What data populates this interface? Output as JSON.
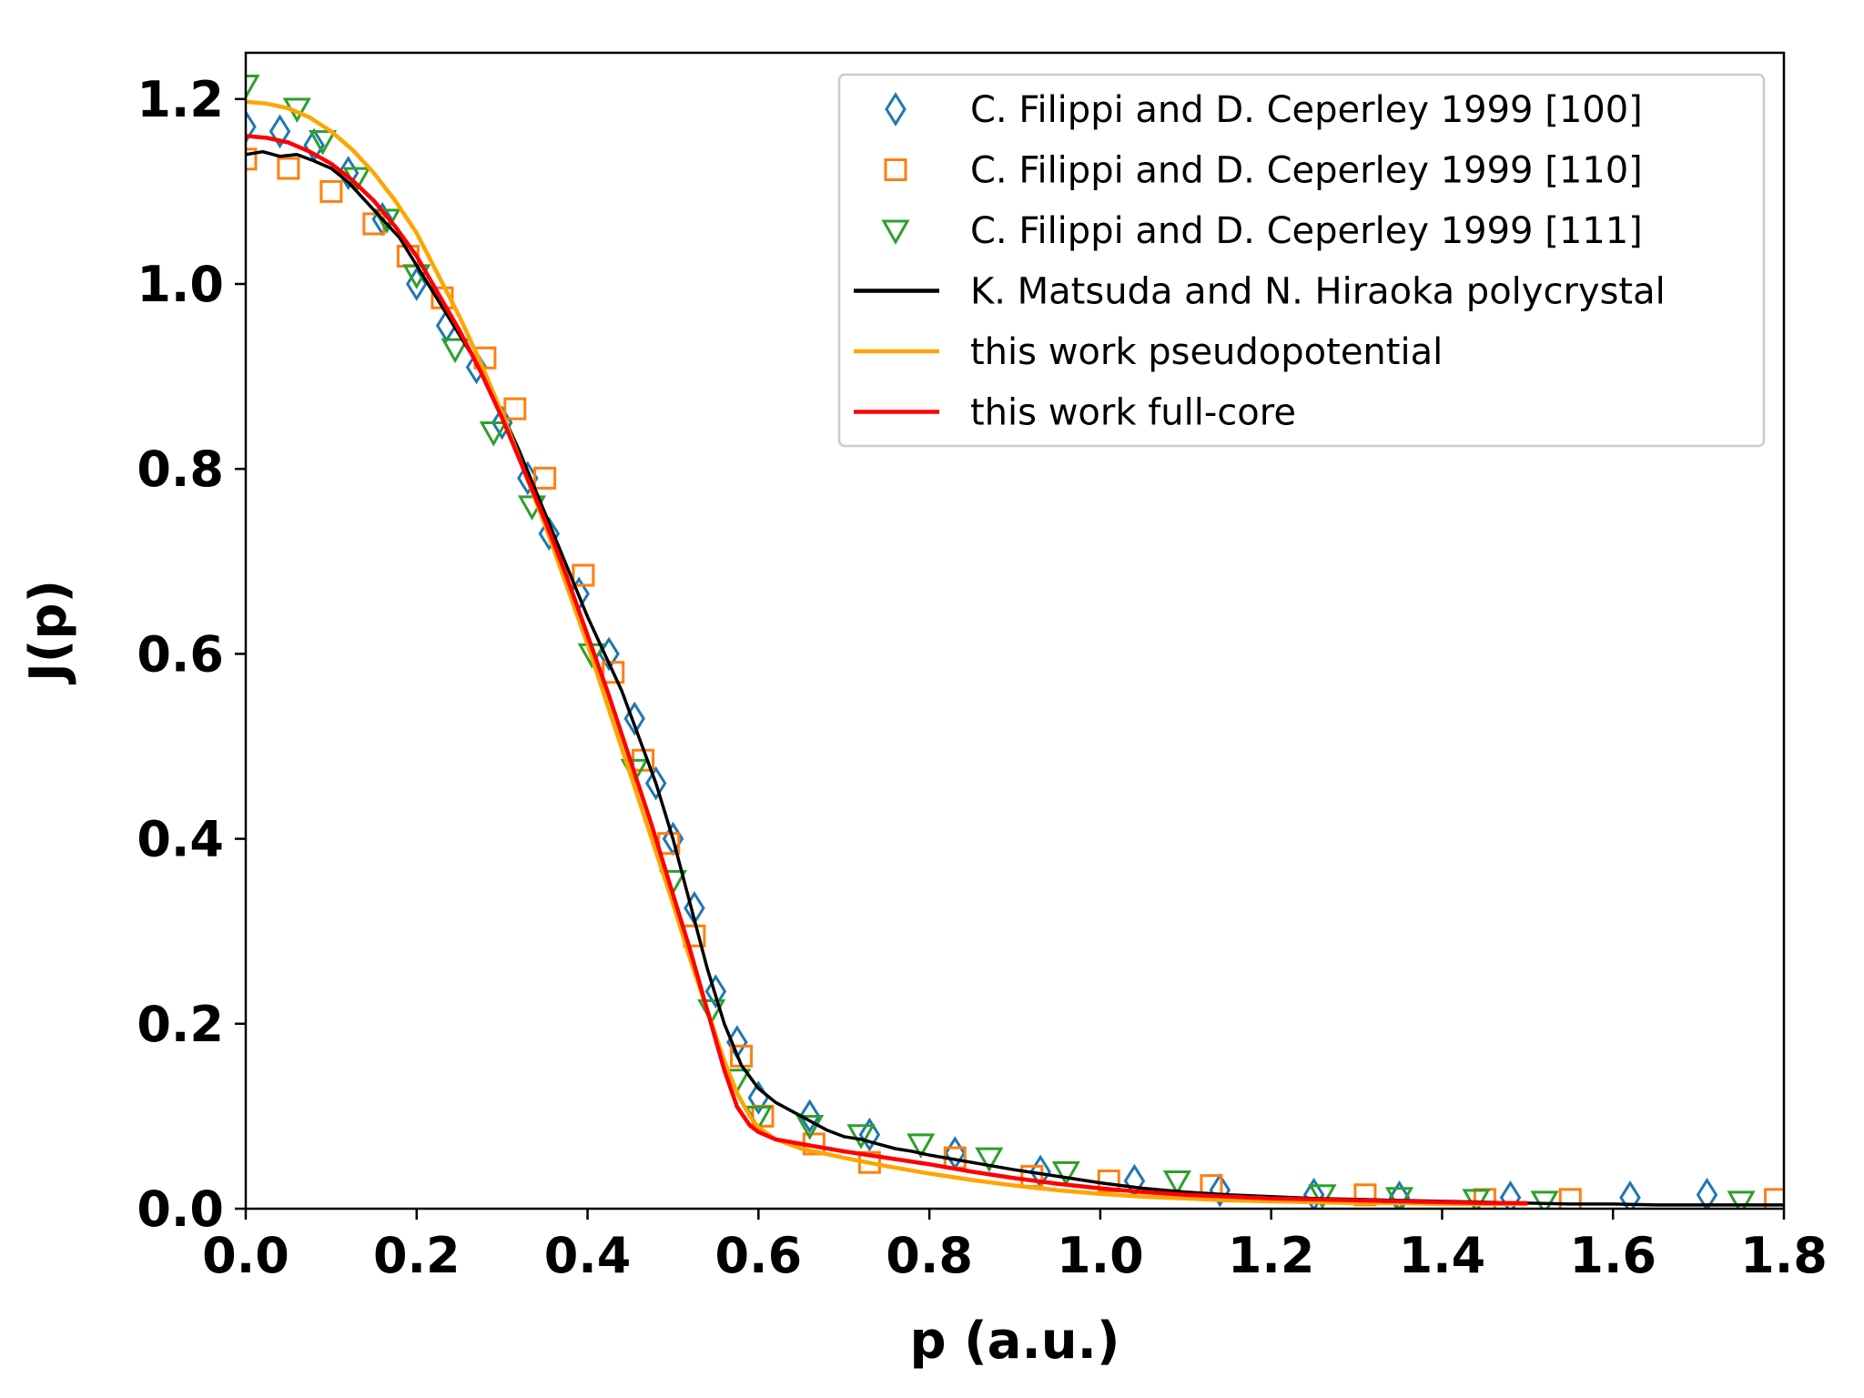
{
  "chart_data": {
    "type": "scatter",
    "xlabel": "p (a.u.)",
    "ylabel": "J(p)",
    "xlim": [
      0,
      1.8
    ],
    "ylim": [
      0,
      1.25
    ],
    "xticks": [
      "0.0",
      "0.2",
      "0.4",
      "0.6",
      "0.8",
      "1.0",
      "1.2",
      "1.4",
      "1.6",
      "1.8"
    ],
    "yticks": [
      "0.0",
      "0.2",
      "0.4",
      "0.6",
      "0.8",
      "1.0",
      "1.2"
    ],
    "grid": false,
    "legend_position": "top-right",
    "series": [
      {
        "name": "C. Filippi and D. Ceperley 1999 [100]",
        "kind": "marker",
        "marker": "thin-diamond",
        "color": "#1f77b4",
        "x": [
          0.0,
          0.04,
          0.08,
          0.12,
          0.16,
          0.2,
          0.235,
          0.27,
          0.3,
          0.33,
          0.355,
          0.39,
          0.425,
          0.455,
          0.48,
          0.5,
          0.525,
          0.55,
          0.575,
          0.6,
          0.66,
          0.73,
          0.83,
          0.93,
          1.04,
          1.14,
          1.25,
          1.35,
          1.48,
          1.62,
          1.71
        ],
        "y": [
          1.17,
          1.165,
          1.15,
          1.12,
          1.07,
          1.0,
          0.955,
          0.91,
          0.85,
          0.79,
          0.73,
          0.665,
          0.6,
          0.53,
          0.46,
          0.4,
          0.325,
          0.235,
          0.18,
          0.12,
          0.1,
          0.08,
          0.06,
          0.04,
          0.03,
          0.02,
          0.015,
          0.012,
          0.012,
          0.012,
          0.015
        ]
      },
      {
        "name": "C. Filippi and D. Ceperley 1999 [110]",
        "kind": "marker",
        "marker": "square",
        "color": "#ff7f0e",
        "x": [
          0.0,
          0.05,
          0.1,
          0.15,
          0.19,
          0.23,
          0.28,
          0.315,
          0.35,
          0.395,
          0.43,
          0.465,
          0.495,
          0.525,
          0.58,
          0.605,
          0.665,
          0.73,
          0.83,
          0.92,
          1.01,
          1.13,
          1.31,
          1.45,
          1.55,
          1.79
        ],
        "y": [
          1.135,
          1.125,
          1.1,
          1.065,
          1.03,
          0.985,
          0.92,
          0.865,
          0.79,
          0.685,
          0.58,
          0.485,
          0.395,
          0.295,
          0.165,
          0.1,
          0.07,
          0.05,
          0.055,
          0.035,
          0.03,
          0.025,
          0.015,
          0.01,
          0.01,
          0.01
        ]
      },
      {
        "name": "C. Filippi and D. Ceperley 1999 [111]",
        "kind": "marker",
        "marker": "triangle-down",
        "color": "#2ca02c",
        "x": [
          0.0,
          0.06,
          0.09,
          0.13,
          0.165,
          0.2,
          0.245,
          0.29,
          0.335,
          0.405,
          0.455,
          0.5,
          0.545,
          0.575,
          0.6,
          0.66,
          0.72,
          0.79,
          0.87,
          0.96,
          1.09,
          1.26,
          1.35,
          1.44,
          1.52,
          1.75
        ],
        "y": [
          1.215,
          1.19,
          1.155,
          1.115,
          1.07,
          1.01,
          0.93,
          0.84,
          0.76,
          0.6,
          0.475,
          0.355,
          0.215,
          0.14,
          0.1,
          0.09,
          0.08,
          0.07,
          0.055,
          0.04,
          0.03,
          0.015,
          0.012,
          0.01,
          0.008,
          0.008
        ]
      },
      {
        "name": "K. Matsuda and N. Hiraoka polycrystal",
        "kind": "line",
        "color": "#000000",
        "x": [
          0.0,
          0.02,
          0.04,
          0.06,
          0.08,
          0.1,
          0.12,
          0.14,
          0.16,
          0.18,
          0.2,
          0.22,
          0.24,
          0.26,
          0.28,
          0.3,
          0.32,
          0.34,
          0.36,
          0.38,
          0.4,
          0.42,
          0.44,
          0.46,
          0.48,
          0.5,
          0.52,
          0.54,
          0.56,
          0.58,
          0.6,
          0.62,
          0.64,
          0.66,
          0.68,
          0.7,
          0.72,
          0.74,
          0.76,
          0.78,
          0.8,
          0.85,
          0.9,
          0.95,
          1.0,
          1.05,
          1.1,
          1.15,
          1.2,
          1.25,
          1.3,
          1.35,
          1.4,
          1.45,
          1.5,
          1.55,
          1.6,
          1.65,
          1.7,
          1.75,
          1.8
        ],
        "y": [
          1.14,
          1.143,
          1.138,
          1.14,
          1.133,
          1.125,
          1.11,
          1.09,
          1.07,
          1.05,
          1.02,
          0.99,
          0.96,
          0.93,
          0.9,
          0.86,
          0.82,
          0.775,
          0.73,
          0.685,
          0.64,
          0.6,
          0.56,
          0.51,
          0.46,
          0.4,
          0.33,
          0.26,
          0.2,
          0.155,
          0.13,
          0.115,
          0.105,
          0.095,
          0.085,
          0.078,
          0.075,
          0.07,
          0.065,
          0.062,
          0.058,
          0.05,
          0.042,
          0.035,
          0.028,
          0.022,
          0.018,
          0.015,
          0.013,
          0.011,
          0.01,
          0.009,
          0.008,
          0.007,
          0.006,
          0.005,
          0.005,
          0.004,
          0.004,
          0.004,
          0.004
        ]
      },
      {
        "name": "this work pseudopotential",
        "kind": "line",
        "color": "#ffa500",
        "x": [
          0.0,
          0.025,
          0.05,
          0.075,
          0.1,
          0.125,
          0.15,
          0.175,
          0.2,
          0.225,
          0.25,
          0.275,
          0.3,
          0.325,
          0.35,
          0.375,
          0.4,
          0.425,
          0.45,
          0.475,
          0.5,
          0.52,
          0.54,
          0.56,
          0.575,
          0.59,
          0.6,
          0.62,
          0.65,
          0.7,
          0.75,
          0.8,
          0.85,
          0.9,
          0.95,
          1.0,
          1.05,
          1.1,
          1.15,
          1.2,
          1.25,
          1.3,
          1.35,
          1.4,
          1.45,
          1.5
        ],
        "y": [
          1.197,
          1.195,
          1.19,
          1.18,
          1.165,
          1.145,
          1.12,
          1.09,
          1.055,
          1.01,
          0.965,
          0.915,
          0.86,
          0.8,
          0.74,
          0.675,
          0.61,
          0.54,
          0.47,
          0.4,
          0.33,
          0.27,
          0.215,
          0.16,
          0.125,
          0.1,
          0.088,
          0.075,
          0.065,
          0.055,
          0.046,
          0.038,
          0.031,
          0.025,
          0.02,
          0.016,
          0.013,
          0.011,
          0.009,
          0.008,
          0.007,
          0.006,
          0.006,
          0.005,
          0.005,
          0.005
        ]
      },
      {
        "name": "this work full-core",
        "kind": "line",
        "color": "#ff0000",
        "x": [
          0.0,
          0.025,
          0.05,
          0.075,
          0.1,
          0.125,
          0.15,
          0.175,
          0.2,
          0.225,
          0.25,
          0.275,
          0.3,
          0.325,
          0.35,
          0.375,
          0.4,
          0.425,
          0.45,
          0.475,
          0.5,
          0.52,
          0.54,
          0.56,
          0.575,
          0.59,
          0.6,
          0.62,
          0.65,
          0.7,
          0.75,
          0.8,
          0.85,
          0.9,
          0.95,
          1.0,
          1.05,
          1.1,
          1.15,
          1.2,
          1.25,
          1.3,
          1.35,
          1.4,
          1.45,
          1.5
        ],
        "y": [
          1.16,
          1.158,
          1.153,
          1.143,
          1.13,
          1.112,
          1.09,
          1.062,
          1.03,
          0.99,
          0.95,
          0.905,
          0.855,
          0.8,
          0.745,
          0.685,
          0.62,
          0.555,
          0.485,
          0.415,
          0.34,
          0.28,
          0.215,
          0.15,
          0.11,
          0.09,
          0.083,
          0.075,
          0.07,
          0.062,
          0.055,
          0.048,
          0.04,
          0.033,
          0.027,
          0.022,
          0.018,
          0.015,
          0.013,
          0.011,
          0.01,
          0.009,
          0.008,
          0.007,
          0.006,
          0.006
        ]
      }
    ]
  }
}
